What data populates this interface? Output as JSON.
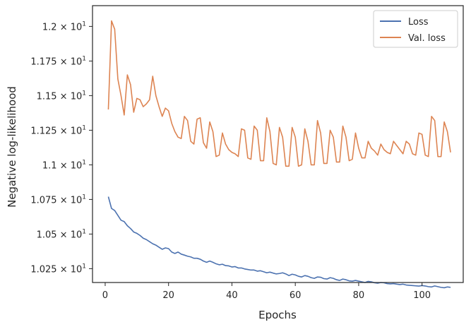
{
  "chart_data": {
    "type": "line",
    "xlabel": "Epochs",
    "ylabel": "Negative log-likelihood",
    "xlim": [
      -4,
      113
    ],
    "ylim": [
      10.15,
      12.15
    ],
    "x_ticks": [
      0,
      20,
      40,
      60,
      80,
      100
    ],
    "y_ticks": [
      {
        "value": 10.25,
        "mantissa": "1.025",
        "exp": "1"
      },
      {
        "value": 10.5,
        "mantissa": "1.05",
        "exp": "1"
      },
      {
        "value": 10.75,
        "mantissa": "1.075",
        "exp": "1"
      },
      {
        "value": 11.0,
        "mantissa": "1.1",
        "exp": "1"
      },
      {
        "value": 11.25,
        "mantissa": "1.125",
        "exp": "1"
      },
      {
        "value": 11.5,
        "mantissa": "1.15",
        "exp": "1"
      },
      {
        "value": 11.75,
        "mantissa": "1.175",
        "exp": "1"
      },
      {
        "value": 12.0,
        "mantissa": "1.2",
        "exp": "1"
      }
    ],
    "tick_base": "10",
    "grid": false,
    "legend_position": "top-right",
    "series": [
      {
        "name": "Loss",
        "color": "#4c72b0",
        "x": [
          1,
          2,
          3,
          4,
          5,
          6,
          7,
          8,
          9,
          10,
          11,
          12,
          13,
          14,
          15,
          16,
          17,
          18,
          19,
          20,
          21,
          22,
          23,
          24,
          25,
          26,
          27,
          28,
          29,
          30,
          31,
          32,
          33,
          34,
          35,
          36,
          37,
          38,
          39,
          40,
          41,
          42,
          43,
          44,
          45,
          46,
          47,
          48,
          49,
          50,
          51,
          52,
          53,
          54,
          55,
          56,
          57,
          58,
          59,
          60,
          61,
          62,
          63,
          64,
          65,
          66,
          67,
          68,
          69,
          70,
          71,
          72,
          73,
          74,
          75,
          76,
          77,
          78,
          79,
          80,
          81,
          82,
          83,
          84,
          85,
          86,
          87,
          88,
          89,
          90,
          91,
          92,
          93,
          94,
          95,
          96,
          97,
          98,
          99,
          100,
          101,
          102,
          103,
          104,
          105,
          106,
          107,
          108,
          109
        ],
        "values": [
          10.77,
          10.685,
          10.67,
          10.635,
          10.6,
          10.59,
          10.56,
          10.54,
          10.515,
          10.505,
          10.49,
          10.47,
          10.46,
          10.445,
          10.43,
          10.42,
          10.405,
          10.39,
          10.4,
          10.395,
          10.37,
          10.36,
          10.37,
          10.355,
          10.348,
          10.34,
          10.335,
          10.325,
          10.325,
          10.318,
          10.305,
          10.296,
          10.305,
          10.296,
          10.285,
          10.278,
          10.282,
          10.272,
          10.27,
          10.262,
          10.265,
          10.255,
          10.255,
          10.248,
          10.244,
          10.24,
          10.24,
          10.232,
          10.235,
          10.228,
          10.22,
          10.225,
          10.218,
          10.212,
          10.215,
          10.22,
          10.212,
          10.2,
          10.21,
          10.205,
          10.195,
          10.19,
          10.2,
          10.195,
          10.185,
          10.18,
          10.19,
          10.188,
          10.178,
          10.175,
          10.185,
          10.18,
          10.17,
          10.165,
          10.175,
          10.17,
          10.162,
          10.16,
          10.165,
          10.16,
          10.155,
          10.15,
          10.158,
          10.155,
          10.148,
          10.145,
          10.15,
          10.148,
          10.142,
          10.14,
          10.142,
          10.138,
          10.135,
          10.138,
          10.132,
          10.13,
          10.128,
          10.126,
          10.124,
          10.128,
          10.125,
          10.12,
          10.118,
          10.125,
          10.12,
          10.115,
          10.112,
          10.118,
          10.115
        ]
      },
      {
        "name": "Val. loss",
        "color": "#dd8452",
        "x": [
          1,
          2,
          3,
          4,
          5,
          6,
          7,
          8,
          9,
          10,
          11,
          12,
          13,
          14,
          15,
          16,
          17,
          18,
          19,
          20,
          21,
          22,
          23,
          24,
          25,
          26,
          27,
          28,
          29,
          30,
          31,
          32,
          33,
          34,
          35,
          36,
          37,
          38,
          39,
          40,
          41,
          42,
          43,
          44,
          45,
          46,
          47,
          48,
          49,
          50,
          51,
          52,
          53,
          54,
          55,
          56,
          57,
          58,
          59,
          60,
          61,
          62,
          63,
          64,
          65,
          66,
          67,
          68,
          69,
          70,
          71,
          72,
          73,
          74,
          75,
          76,
          77,
          78,
          79,
          80,
          81,
          82,
          83,
          84,
          85,
          86,
          87,
          88,
          89,
          90,
          91,
          92,
          93,
          94,
          95,
          96,
          97,
          98,
          99,
          100,
          101,
          102,
          103,
          104,
          105,
          106,
          107,
          108,
          109
        ],
        "values": [
          11.4,
          12.04,
          11.98,
          11.62,
          11.5,
          11.36,
          11.65,
          11.58,
          11.38,
          11.48,
          11.47,
          11.42,
          11.44,
          11.47,
          11.64,
          11.5,
          11.42,
          11.35,
          11.41,
          11.39,
          11.3,
          11.24,
          11.2,
          11.19,
          11.35,
          11.32,
          11.17,
          11.15,
          11.33,
          11.34,
          11.16,
          11.12,
          11.31,
          11.24,
          11.06,
          11.07,
          11.23,
          11.15,
          11.11,
          11.09,
          11.08,
          11.06,
          11.26,
          11.25,
          11.05,
          11.04,
          11.28,
          11.25,
          11.03,
          11.03,
          11.34,
          11.24,
          11.01,
          11.0,
          11.27,
          11.2,
          10.99,
          10.99,
          11.27,
          11.2,
          10.99,
          11.0,
          11.26,
          11.17,
          11.0,
          11.0,
          11.32,
          11.23,
          11.01,
          11.01,
          11.25,
          11.2,
          11.02,
          11.02,
          11.28,
          11.2,
          11.03,
          11.04,
          11.23,
          11.12,
          11.05,
          11.05,
          11.17,
          11.12,
          11.1,
          11.07,
          11.15,
          11.11,
          11.09,
          11.08,
          11.17,
          11.14,
          11.11,
          11.08,
          11.17,
          11.15,
          11.08,
          11.07,
          11.23,
          11.22,
          11.07,
          11.06,
          11.35,
          11.32,
          11.06,
          11.06,
          11.31,
          11.24,
          11.09
        ]
      }
    ]
  }
}
